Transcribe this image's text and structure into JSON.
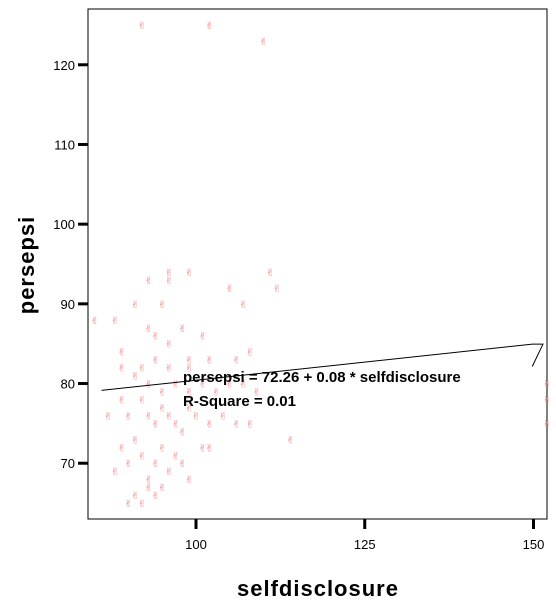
{
  "chart_data": {
    "type": "scatter",
    "xlabel": "selfdisclosure",
    "ylabel": "persepsi",
    "xlim": [
      84,
      152
    ],
    "ylim": [
      63,
      127
    ],
    "x_ticks": [
      100,
      125,
      150
    ],
    "y_ticks": [
      70,
      80,
      90,
      100,
      110,
      120
    ],
    "grid": false,
    "marker_color": "#f08080",
    "line_color": "#000000",
    "fit_line": {
      "intercept": 72.26,
      "slope": 0.08,
      "x_range": [
        86,
        151
      ]
    },
    "annotation": {
      "equation": "persepsi = 72.26 + 0.08 * selfdisclosure",
      "r_square": "R-Square = 0.01"
    },
    "points": [
      [
        92,
        125
      ],
      [
        102,
        125
      ],
      [
        110,
        123
      ],
      [
        85,
        88
      ],
      [
        88,
        88
      ],
      [
        91,
        90
      ],
      [
        93,
        87
      ],
      [
        94,
        86
      ],
      [
        96,
        93
      ],
      [
        96,
        94
      ],
      [
        99,
        94
      ],
      [
        93,
        93
      ],
      [
        95,
        90
      ],
      [
        111,
        94
      ],
      [
        112,
        92
      ],
      [
        105,
        92
      ],
      [
        107,
        90
      ],
      [
        101,
        86
      ],
      [
        98,
        87
      ],
      [
        96,
        85
      ],
      [
        99,
        83
      ],
      [
        99,
        82
      ],
      [
        102,
        83
      ],
      [
        106,
        83
      ],
      [
        108,
        84
      ],
      [
        89,
        84
      ],
      [
        89,
        82
      ],
      [
        92,
        82
      ],
      [
        94,
        83
      ],
      [
        96,
        82
      ],
      [
        91,
        81
      ],
      [
        93,
        80
      ],
      [
        95,
        79
      ],
      [
        97,
        80
      ],
      [
        99,
        79
      ],
      [
        101,
        80
      ],
      [
        103,
        79
      ],
      [
        105,
        80
      ],
      [
        107,
        80
      ],
      [
        109,
        79
      ],
      [
        87,
        76
      ],
      [
        89,
        78
      ],
      [
        90,
        76
      ],
      [
        92,
        78
      ],
      [
        93,
        76
      ],
      [
        94,
        75
      ],
      [
        95,
        77
      ],
      [
        96,
        76
      ],
      [
        97,
        75
      ],
      [
        98,
        74
      ],
      [
        99,
        77
      ],
      [
        100,
        76
      ],
      [
        102,
        75
      ],
      [
        104,
        76
      ],
      [
        106,
        75
      ],
      [
        108,
        75
      ],
      [
        89,
        72
      ],
      [
        90,
        70
      ],
      [
        91,
        73
      ],
      [
        92,
        71
      ],
      [
        93,
        68
      ],
      [
        94,
        70
      ],
      [
        95,
        72
      ],
      [
        96,
        69
      ],
      [
        97,
        71
      ],
      [
        98,
        70
      ],
      [
        99,
        68
      ],
      [
        101,
        72
      ],
      [
        102,
        72
      ],
      [
        93,
        67
      ],
      [
        94,
        66
      ],
      [
        91,
        66
      ],
      [
        90,
        65
      ],
      [
        88,
        69
      ],
      [
        92,
        65
      ],
      [
        95,
        67
      ],
      [
        114,
        73
      ],
      [
        152,
        80
      ],
      [
        152,
        78
      ],
      [
        152,
        75
      ]
    ]
  }
}
